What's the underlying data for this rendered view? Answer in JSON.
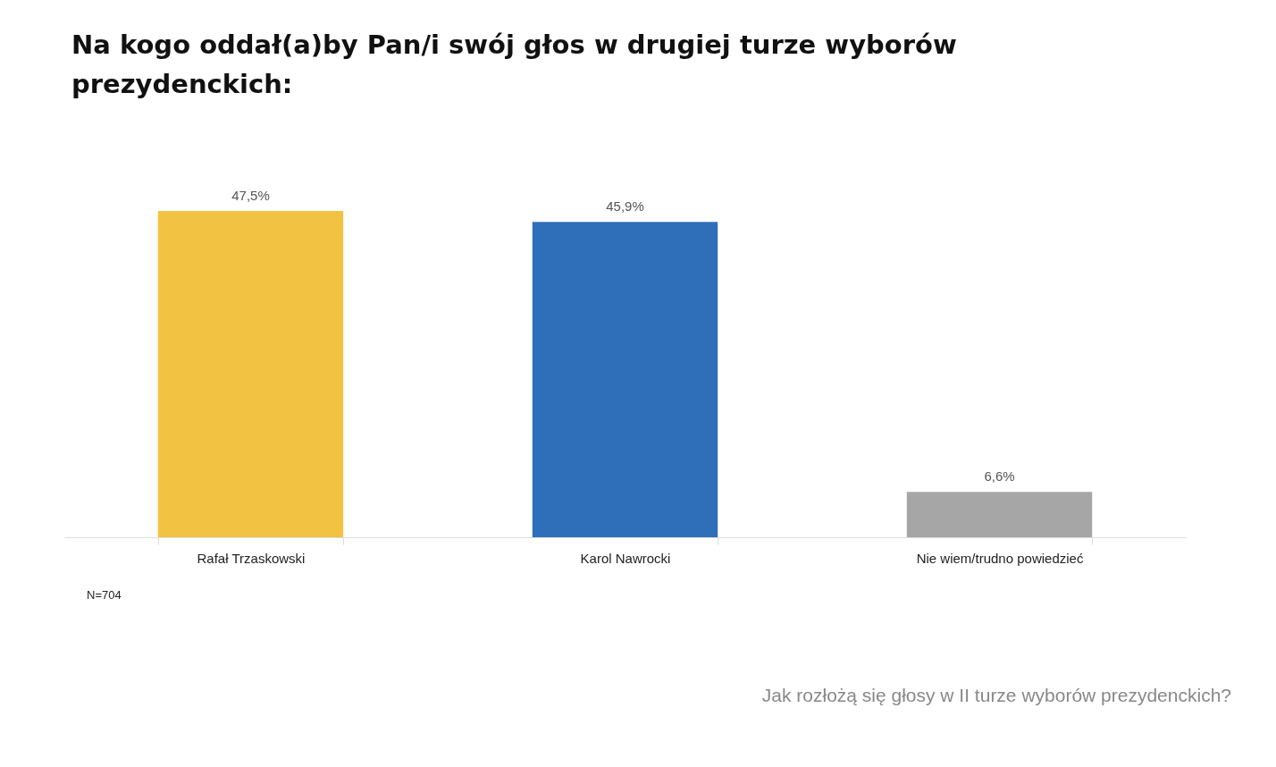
{
  "chart_data": {
    "type": "bar",
    "title": "Na kogo oddał(a)by Pan/i swój głos w drugiej turze wyborów prezydenckich:",
    "categories": [
      "Rafał Trzaskowski",
      "Karol Nawrocki",
      "Nie wiem/trudno powiedzieć"
    ],
    "values": [
      47.5,
      45.9,
      6.6
    ],
    "colors": [
      "#f2c342",
      "#2f6fba",
      "#a6a6a6"
    ],
    "value_labels": [
      "47,5%",
      "45,9%",
      "6,6%"
    ],
    "annotations": [
      "N=704",
      "Jak rozłożą się głosy w II turze wyborów prezydenckich?"
    ]
  }
}
